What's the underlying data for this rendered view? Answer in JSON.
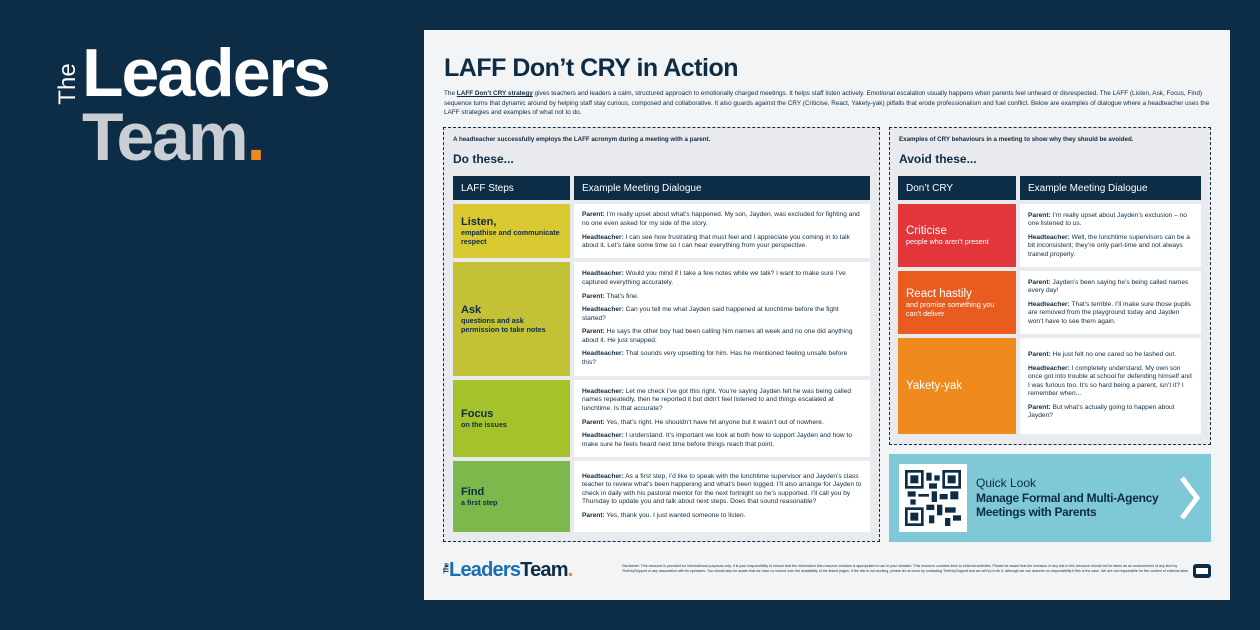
{
  "brand": {
    "the": "The",
    "leaders": "Leaders",
    "team": "Team",
    "dot": "."
  },
  "document": {
    "title": "LAFF Don’t CRY in Action",
    "intro": {
      "before": "The ",
      "link": "LAFF Don’t CRY strategy",
      "after": " gives teachers and leaders a calm, structured approach to emotionally charged meetings. It helps staff listen actively. Emotional escalation usually happens when parents feel unheard or disrespected. The LAFF (Listen, Ask, Focus, Find) sequence turns that dynamic around by helping staff stay curious, composed and collaborative. It also guards against the CRY (Criticise, React, Yakety-yak) pitfalls that erode professionalism and fuel conflict. Below are examples of dialogue where a headteacher uses the LAFF strategies and examples of what not to do."
    },
    "do_section": {
      "caption": "A headteacher successfully employs the LAFF acronym during a meeting with a parent.",
      "heading": "Do these...",
      "columns": [
        "LAFF Steps",
        "Example Meeting Dialogue"
      ],
      "rows": [
        {
          "step": "Listen,",
          "sub": "empathise and communicate respect",
          "dialogue": [
            {
              "speaker": "Parent:",
              "text": " I’m really upset about what’s happened. My son, Jayden, was excluded for fighting and no one even asked for my side of the story."
            },
            {
              "speaker": "Headteacher:",
              "text": " I can see how frustrating that must feel and I appreciate you coming in to talk about it. Let’s take some time so I can hear everything from your perspective."
            }
          ]
        },
        {
          "step": "Ask",
          "sub": "questions and ask permission to take notes",
          "dialogue": [
            {
              "speaker": "Headteacher:",
              "text": " Would you mind if I take a few notes while we talk? I want to make sure I’ve captured everything accurately."
            },
            {
              "speaker": "Parent:",
              "text": " That’s fine."
            },
            {
              "speaker": "Headteacher:",
              "text": " Can you tell me what Jayden said happened at lunchtime before the fight started?"
            },
            {
              "speaker": "Parent:",
              "text": " He says the other boy had been calling him names all week and no one did anything about it. He just snapped."
            },
            {
              "speaker": "Headteacher:",
              "text": " That sounds very upsetting for him. Has he mentioned feeling unsafe before this?"
            }
          ]
        },
        {
          "step": "Focus",
          "sub": "on the issues",
          "dialogue": [
            {
              "speaker": "Headteacher:",
              "text": " Let me check I’ve got this right. You’re saying Jayden felt he was being called names repeatedly, then he reported it but didn’t feel listened to and things escalated at lunchtime. Is that accurate?"
            },
            {
              "speaker": "Parent:",
              "text": " Yes, that’s right. He shouldn’t have hit anyone but it wasn’t out of nowhere."
            },
            {
              "speaker": "Headteacher:",
              "text": " I understand. It’s important we look at both how to support Jayden and how to make sure he feels heard next time before things reach that point."
            }
          ]
        },
        {
          "step": "Find",
          "sub": "a first step",
          "dialogue": [
            {
              "speaker": "Headteacher:",
              "text": " As a first step, I’d like to speak with the lunchtime supervisor and Jayden’s class teacher to review what’s been happening and what’s been logged. I’ll also arrange for Jayden to check in daily with his pastoral mentor for the next fortnight so he’s supported. I’ll call you by Thursday to update you and talk about next steps. Does that sound reasonable?"
            },
            {
              "speaker": "Parent:",
              "text": " Yes, thank you. I just wanted someone to listen."
            }
          ]
        }
      ]
    },
    "avoid_section": {
      "caption": "Examples of CRY behaviours in a meeting to show why they should be avoided.",
      "heading": "Avoid these...",
      "columns": [
        "Don’t CRY",
        "Example Meeting Dialogue"
      ],
      "rows": [
        {
          "step": "Criticise",
          "sub": "people who aren’t present",
          "dialogue": [
            {
              "speaker": "Parent:",
              "text": " I’m really upset about Jayden’s exclusion – no one listened to us."
            },
            {
              "speaker": "Headteacher:",
              "text": " Well, the lunchtime supervisors can be a bit inconsistent; they’re only part-time and not always trained properly."
            }
          ]
        },
        {
          "step": "React hastily",
          "sub": "and promise something you can’t deliver",
          "dialogue": [
            {
              "speaker": "Parent:",
              "text": " Jayden’s been saying he’s being called names every day!"
            },
            {
              "speaker": "Headteacher:",
              "text": " That’s terrible. I’ll make sure those pupils are removed from the playground today and Jayden won’t have to see them again."
            }
          ]
        },
        {
          "step": "Yakety-yak",
          "dialogue": [
            {
              "speaker": "Parent:",
              "text": " He just felt no one cared so he lashed out."
            },
            {
              "speaker": "Headteacher:",
              "text": " I completely understand. My own son once got into trouble at school for defending himself and I was furious too. It’s so hard being a parent, isn’t it? I remember when..."
            },
            {
              "speaker": "Parent:",
              "text": " But what’s actually going to happen about Jayden?"
            }
          ]
        }
      ]
    },
    "quick_look": {
      "label": "Quick Look",
      "title": "Manage Formal and Multi-Agency Meetings with Parents"
    },
    "footer": {
      "logo": {
        "the": "The",
        "leaders": "Leaders",
        "team": "Team",
        "dot": "."
      },
      "disclaimer": "Disclaimer: This resource is provided for informational purposes only. It is your responsibility to ensure that the information this resource contains is appropriate to use in your situation. This resource contains links to external websites. Please be aware that the inclusion of any link in this resource should not be taken as an endorsement of any kind by TheKeySupport or any association with its operators. You should also be aware that we have no control over the availability of the linked pages. If the link is not working, please let us know by contacting TheKeySupport and we will try to fix it, although we can assume no responsibility if this is the case. We are not responsible for the content of external sites."
    }
  }
}
